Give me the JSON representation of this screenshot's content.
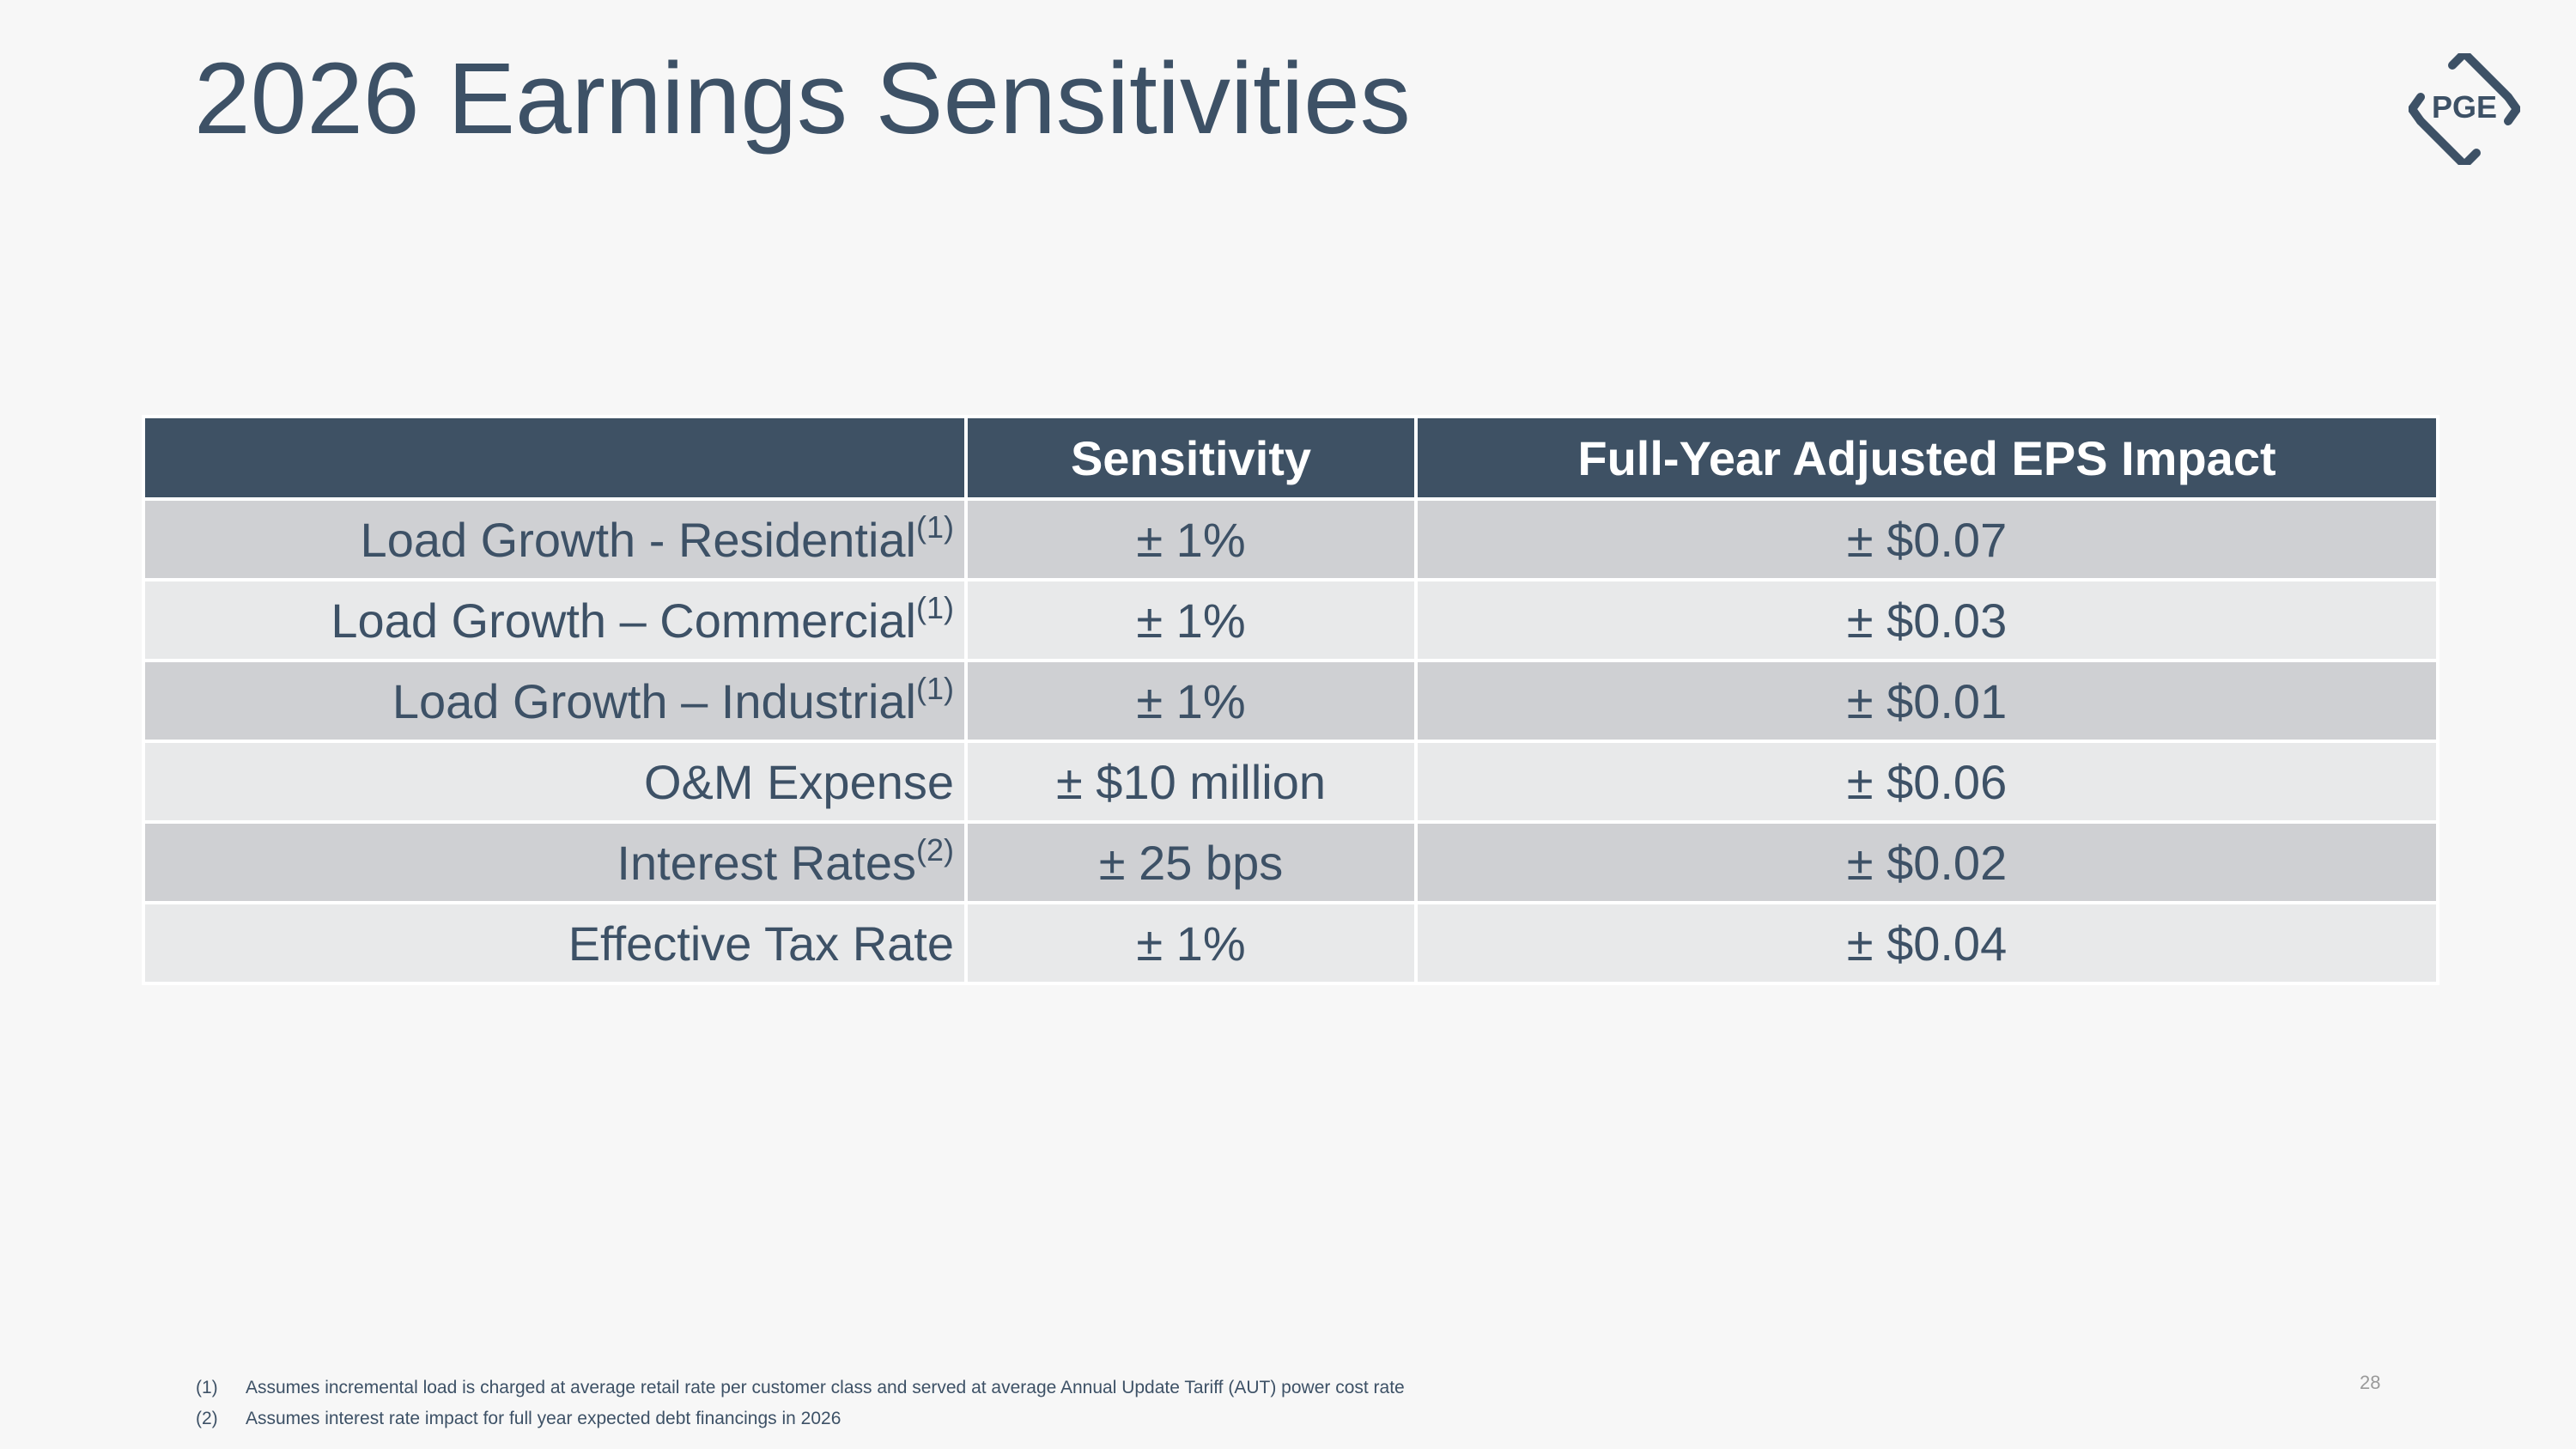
{
  "slide": {
    "title": "2026 Earnings Sensitivities",
    "logo_text": "PGE",
    "page_number": "28"
  },
  "colors": {
    "title": "#3d5166",
    "header_bg": "#3e5164",
    "row_dark": "#cfd0d3",
    "row_light": "#e8e9ea",
    "background": "#f7f7f7"
  },
  "table": {
    "headers": [
      "",
      "Sensitivity",
      "Full-Year Adjusted EPS Impact"
    ],
    "rows": [
      {
        "label": "Load Growth - Residential",
        "note": "(1)",
        "sensitivity": "± 1%",
        "impact": "± $0.07"
      },
      {
        "label": "Load Growth – Commercial",
        "note": "(1)",
        "sensitivity": "± 1%",
        "impact": "± $0.03"
      },
      {
        "label": "Load Growth – Industrial",
        "note": "(1)",
        "sensitivity": "± 1%",
        "impact": "± $0.01"
      },
      {
        "label": "O&M Expense",
        "note": "",
        "sensitivity": "± $10 million",
        "impact": "± $0.06"
      },
      {
        "label": "Interest Rates",
        "note": "(2)",
        "sensitivity": "± 25 bps",
        "impact": "± $0.02"
      },
      {
        "label": "Effective Tax Rate",
        "note": "",
        "sensitivity": "± 1%",
        "impact": "± $0.04"
      }
    ]
  },
  "footnotes": [
    {
      "mark": "(1)",
      "text": "Assumes incremental load is charged at average retail rate per customer class and served at average Annual Update Tariff (AUT) power cost rate"
    },
    {
      "mark": "(2)",
      "text": "Assumes interest rate impact for full year expected debt financings in 2026"
    }
  ]
}
